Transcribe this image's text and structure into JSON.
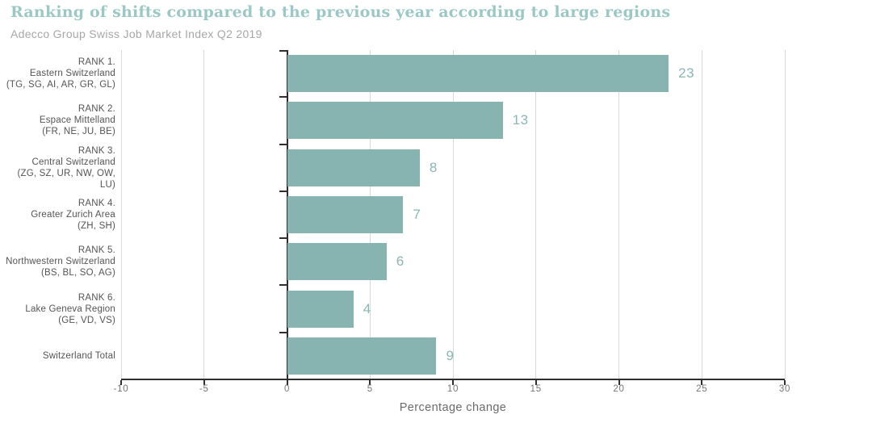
{
  "header": {
    "title": "Ranking of shifts compared to the previous year according to large regions",
    "subtitle": "Adecco Group Swiss Job Market Index Q2 2019"
  },
  "chart_data": {
    "type": "bar",
    "orientation": "horizontal",
    "title": "Ranking of shifts compared to the previous year according to large regions",
    "subtitle": "Adecco Group Swiss Job Market Index Q2 2019",
    "xlabel": "Percentage change",
    "xlim": [
      -10,
      30
    ],
    "xticks": [
      -10,
      -5,
      0,
      5,
      10,
      15,
      20,
      25,
      30
    ],
    "grid": true,
    "legend": "none",
    "categories": [
      "RANK 1. Eastern Switzerland (TG, SG, AI, AR, GR, GL)",
      "RANK 2. Espace Mittelland (FR, NE, JU, BE)",
      "RANK 3. Central Switzerland (ZG, SZ, UR, NW, OW, LU)",
      "RANK 4. Greater Zurich Area (ZH, SH)",
      "RANK 5. Northwestern Switzerland (BS, BL, SO, AG)",
      "RANK 6. Lake Geneva Region (GE, VD, VS)",
      "Switzerland Total"
    ],
    "values": [
      23,
      13,
      8,
      7,
      6,
      4,
      9
    ],
    "rows": [
      {
        "rank": "RANK 1.",
        "region": "Eastern Switzerland",
        "cantons": "(TG, SG, AI, AR, GR, GL)",
        "value": 23
      },
      {
        "rank": "RANK 2.",
        "region": "Espace Mittelland",
        "cantons": "(FR, NE, JU, BE)",
        "value": 13
      },
      {
        "rank": "RANK 3.",
        "region": "Central Switzerland",
        "cantons": "(ZG, SZ, UR, NW, OW, LU)",
        "value": 8
      },
      {
        "rank": "RANK 4.",
        "region": "Greater Zurich Area",
        "cantons": "(ZH, SH)",
        "value": 7
      },
      {
        "rank": "RANK 5.",
        "region": "Northwestern Switzerland",
        "cantons": "(BS, BL, SO, AG)",
        "value": 6
      },
      {
        "rank": "RANK 6.",
        "region": "Lake Geneva Region",
        "cantons": "(GE, VD, VS)",
        "value": 4
      },
      {
        "rank": "",
        "region": "Switzerland Total",
        "cantons": "",
        "value": 9
      }
    ],
    "colors": {
      "bar": "#87b3b0",
      "value_label": "#8ab6b3",
      "title": "#9bc8c7",
      "subtitle": "#a7a7a7",
      "grid": "#d8d8d8",
      "axis": "#2f2f2f",
      "tick_label": "#757575",
      "category_label": "#545454",
      "axis_title": "#6b6b6b"
    }
  }
}
